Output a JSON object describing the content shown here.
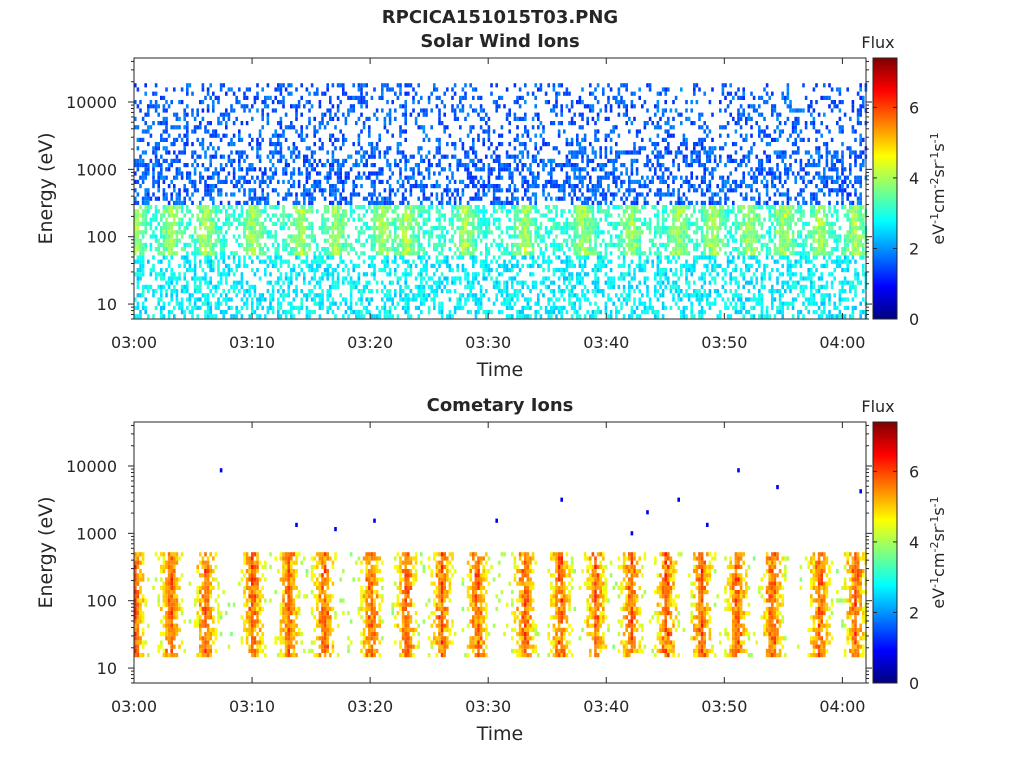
{
  "figure": {
    "title": "RPCICA151015T03.PNG"
  },
  "chart_data": [
    {
      "type": "heatmap",
      "title": "Solar Wind Ions",
      "xlabel": "Time",
      "ylabel": "Energy (eV)",
      "x_ticks": [
        "03:00",
        "03:10",
        "03:20",
        "03:30",
        "03:40",
        "03:50",
        "04:00"
      ],
      "x_range": [
        "03:00",
        "04:02"
      ],
      "y_scale": "log",
      "y_ticks": [
        "10",
        "100",
        "1000",
        "10000"
      ],
      "y_range": [
        6,
        45000
      ],
      "colorbar": {
        "title": "Flux",
        "label": "eV-1cm-2sr-1s-1",
        "ticks": [
          "0",
          "2",
          "4",
          "6"
        ],
        "range": [
          0,
          7.4
        ],
        "colormap": "jet"
      },
      "description_bands": [
        {
          "energy_range_eV": [
            6,
            60
          ],
          "typical_flux": 2.7
        },
        {
          "energy_range_eV": [
            60,
            300
          ],
          "typical_flux": 3.5,
          "peak_flux": 4.6
        },
        {
          "energy_range_eV": [
            300,
            20000
          ],
          "typical_flux": 1.6
        }
      ],
      "bursts_time": [
        "03:00",
        "03:03",
        "03:06",
        "03:10",
        "03:14",
        "03:17",
        "03:21",
        "03:23",
        "03:28",
        "03:33",
        "03:38",
        "03:42",
        "03:46",
        "03:49",
        "03:52",
        "03:55",
        "03:58",
        "04:01"
      ]
    },
    {
      "type": "heatmap",
      "title": "Cometary Ions",
      "xlabel": "Time",
      "ylabel": "Energy (eV)",
      "x_ticks": [
        "03:00",
        "03:10",
        "03:20",
        "03:30",
        "03:40",
        "03:50",
        "04:00"
      ],
      "x_range": [
        "03:00",
        "04:02"
      ],
      "y_scale": "log",
      "y_ticks": [
        "10",
        "100",
        "1000",
        "10000"
      ],
      "y_range": [
        6,
        45000
      ],
      "colorbar": {
        "title": "Flux",
        "label": "eV-1cm-2sr-1s-1",
        "ticks": [
          "0",
          "2",
          "4",
          "6"
        ],
        "range": [
          0,
          7.4
        ],
        "colormap": "jet"
      },
      "description_bands": [
        {
          "energy_range_eV": [
            15,
            600
          ],
          "typical_flux": 4.5,
          "peak_flux": 6.6
        },
        {
          "energy_range_eV": [
            1000,
            12000
          ],
          "typical_flux": 0.8,
          "sparse": true
        }
      ],
      "bursts_time": [
        "03:00",
        "03:03",
        "03:06",
        "03:10",
        "03:13",
        "03:16",
        "03:20",
        "03:23",
        "03:26",
        "03:29",
        "03:33",
        "03:36",
        "03:39",
        "03:42",
        "03:45",
        "03:48",
        "03:51",
        "03:54",
        "03:58",
        "04:01"
      ]
    }
  ]
}
